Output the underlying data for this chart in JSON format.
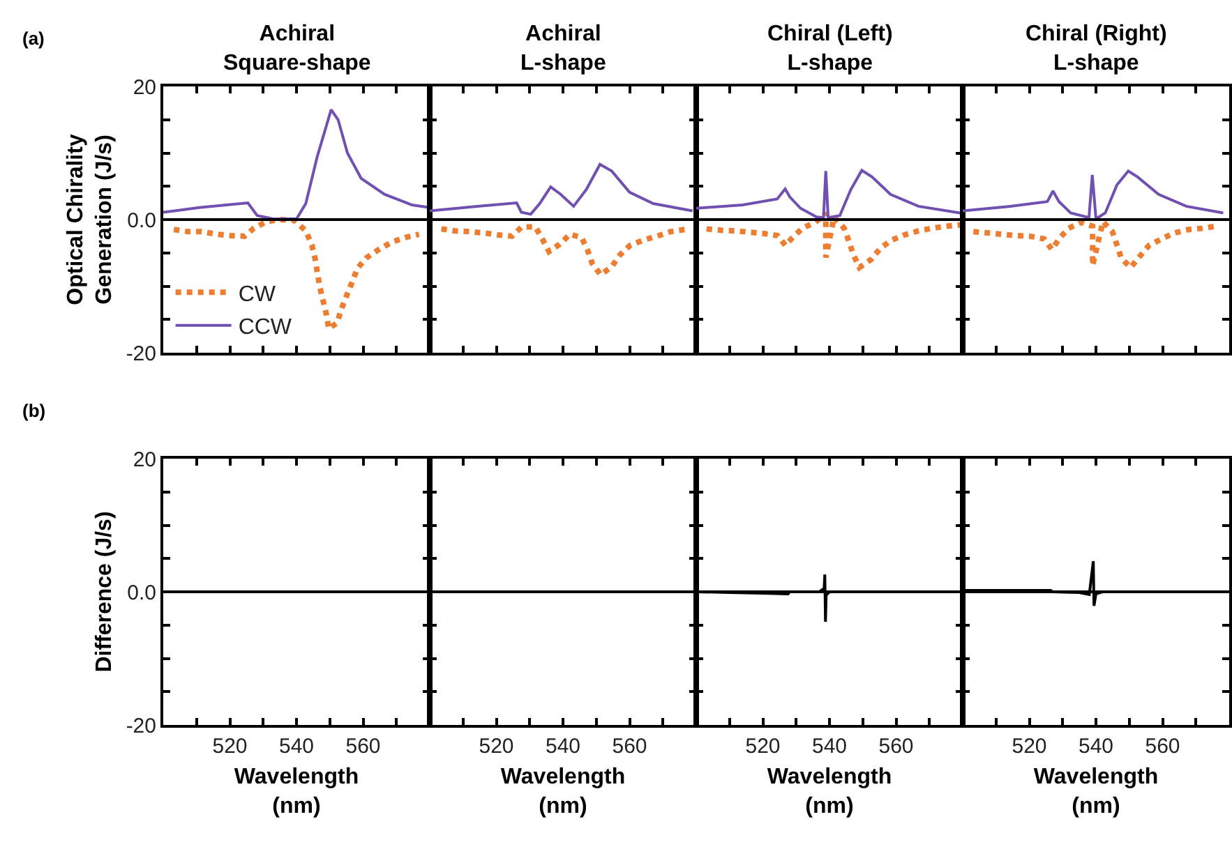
{
  "chart_data": [
    {
      "type": "line",
      "title": "Achiral\nSquare-shape",
      "ylabel": "Optical Chirality\nGeneration (J/s)",
      "annotations": [
        "(a)"
      ],
      "xlim": [
        500,
        580
      ],
      "ylim": [
        -20,
        20
      ],
      "xticks": [
        {
          "value": 510,
          "label": null
        },
        520,
        {
          "value": 530,
          "label": null
        },
        540,
        {
          "value": 550,
          "label": null
        },
        560,
        {
          "value": 570,
          "label": null
        }
      ],
      "yticks": [
        -20,
        {
          "value": -15,
          "label": null
        },
        {
          "value": -10,
          "label": null
        },
        {
          "value": -5,
          "label": null
        },
        {
          "value": 0,
          "label": "0.0"
        },
        {
          "value": 5,
          "label": null
        },
        {
          "value": 10,
          "label": null
        },
        {
          "value": 15,
          "label": null
        },
        20
      ],
      "tick_labels": "y",
      "legend": "bottom left",
      "ref_lines": [
        {
          "axis": "y",
          "value": 0,
          "color": "#000000"
        }
      ],
      "series": [
        {
          "name": "CW",
          "color": "#ed7d31",
          "line_style": "dotted",
          "x": [
            503.2,
            507.4,
            511.5,
            516,
            520.3,
            524.4,
            527.2,
            531,
            535,
            539.3,
            542.8,
            544.6,
            545.6,
            546.3,
            547,
            548,
            549,
            549.7,
            552.2,
            553.5,
            555,
            556.7,
            558.3,
            561.1,
            564.7,
            568.5,
            572.6,
            576.8
          ],
          "values": [
            -1.5,
            -1.8,
            -1.8,
            -2.2,
            -2.4,
            -2.5,
            -1.3,
            -0.3,
            0,
            -0.1,
            -1.7,
            -3.8,
            -5.9,
            -8.1,
            -10.1,
            -12.2,
            -14.3,
            -16.4,
            -15.5,
            -13.4,
            -11.5,
            -9.4,
            -7.3,
            -5.7,
            -4.5,
            -3.4,
            -2.7,
            -2.2
          ]
        },
        {
          "name": "CCW",
          "color": "#7050b0",
          "line_style": "solid",
          "x": [
            500,
            510.8,
            525.4,
            528.2,
            533,
            540,
            542.8,
            546.2,
            550.4,
            552.5,
            555.3,
            559.4,
            566.4,
            574.7,
            580
          ],
          "values": [
            1.1,
            1.8,
            2.5,
            0.6,
            0.1,
            0.1,
            2.4,
            9.4,
            16.5,
            15,
            10,
            6.2,
            3.8,
            2.2,
            1.8
          ]
        }
      ]
    },
    {
      "type": "line",
      "title": "Achiral\nL-shape",
      "xlim": [
        500,
        580
      ],
      "ylim": [
        -20,
        20
      ],
      "xticks": [
        {
          "value": 510,
          "label": null
        },
        520,
        {
          "value": 530,
          "label": null
        },
        540,
        {
          "value": 550,
          "label": null
        },
        560,
        {
          "value": 570,
          "label": null
        }
      ],
      "yticks": [
        -20,
        {
          "value": -15,
          "label": null
        },
        {
          "value": -10,
          "label": null
        },
        {
          "value": -5,
          "label": null
        },
        {
          "value": 0,
          "label": null
        },
        {
          "value": 5,
          "label": null
        },
        {
          "value": 10,
          "label": null
        },
        {
          "value": 15,
          "label": null
        },
        20
      ],
      "tick_labels": false,
      "ref_lines": [
        {
          "axis": "y",
          "value": 0,
          "color": "#000000"
        }
      ],
      "series": [
        {
          "color": "#ed7d31",
          "line_style": "dotted",
          "x": [
            503.5,
            507.6,
            511.9,
            516.2,
            520.5,
            524.7,
            527.6,
            531.7,
            533.8,
            535.8,
            539,
            542.1,
            545.6,
            547.4,
            548.8,
            551.3,
            554.6,
            557.1,
            560.1,
            564,
            568.2,
            572.4,
            576.5
          ],
          "values": [
            -1.4,
            -1.7,
            -1.8,
            -2,
            -2.3,
            -2.5,
            -1.1,
            -1.1,
            -2.9,
            -4.8,
            -3.7,
            -2.2,
            -2.7,
            -4.6,
            -6.6,
            -8.3,
            -7.1,
            -5.3,
            -3.9,
            -3.1,
            -2.5,
            -1.8,
            -1.5
          ]
        },
        {
          "color": "#7050b0",
          "line_style": "solid",
          "x": [
            500,
            514.3,
            526.1,
            527.5,
            530.3,
            533,
            536.3,
            539.3,
            543.2,
            547,
            551.1,
            554.6,
            560,
            567.1,
            578.9
          ],
          "values": [
            1.3,
            2.0,
            2.5,
            1.1,
            0.8,
            2.4,
            4.9,
            3.8,
            2.0,
            4.5,
            8.3,
            7.3,
            4.1,
            2.4,
            1.3
          ]
        }
      ]
    },
    {
      "type": "line",
      "title": "Chiral (Left)\nL-shape",
      "xlim": [
        500,
        580
      ],
      "ylim": [
        -20,
        20
      ],
      "xticks": [
        {
          "value": 510,
          "label": null
        },
        520,
        {
          "value": 530,
          "label": null
        },
        540,
        {
          "value": 550,
          "label": null
        },
        560,
        {
          "value": 570,
          "label": null
        }
      ],
      "yticks": [
        -20,
        {
          "value": -15,
          "label": null
        },
        {
          "value": -10,
          "label": null
        },
        {
          "value": -5,
          "label": null
        },
        {
          "value": 0,
          "label": null
        },
        {
          "value": 5,
          "label": null
        },
        {
          "value": 10,
          "label": null
        },
        {
          "value": 15,
          "label": null
        },
        20
      ],
      "tick_labels": false,
      "ref_lines": [
        {
          "axis": "y",
          "value": 0,
          "color": "#000000"
        }
      ],
      "series": [
        {
          "color": "#ed7d31",
          "line_style": "dotted",
          "x": [
            503.1,
            507.4,
            511.7,
            516,
            520.3,
            524.4,
            526.8,
            528.9,
            531.9,
            535.8,
            538.9,
            538.9,
            538.9,
            538.9,
            541.4,
            544.4,
            545.8,
            547.2,
            549,
            552.5,
            555.3,
            558.6,
            562.5,
            566.7,
            570.8,
            575,
            579.2
          ],
          "values": [
            -1.4,
            -1.6,
            -1.7,
            -1.9,
            -2.1,
            -2.4,
            -3.9,
            -2.7,
            -1.3,
            -0.4,
            1.0,
            -1.5,
            -3.6,
            -5.7,
            0.4,
            -1.3,
            -3.2,
            -5.3,
            -7.2,
            -6,
            -4.3,
            -3.1,
            -2.3,
            -1.7,
            -1.3,
            -1,
            -0.8
          ]
        },
        {
          "color": "#7050b0",
          "line_style": "solid",
          "x": [
            500,
            513.9,
            524.3,
            526.7,
            528.1,
            531.3,
            536.1,
            538.2,
            538.9,
            539.6,
            543.1,
            546.4,
            549.7,
            552.8,
            558.3,
            566.7,
            579.2
          ],
          "values": [
            1.7,
            2.2,
            3.1,
            4.6,
            3.4,
            1.7,
            0.4,
            0.3,
            7.3,
            0.3,
            0.6,
            4.5,
            7.4,
            6.4,
            3.8,
            2,
            1.0
          ]
        }
      ]
    },
    {
      "type": "line",
      "title": "Chiral (Right)\nL-shape",
      "xlim": [
        500,
        580
      ],
      "ylim": [
        -20,
        20
      ],
      "xticks": [
        {
          "value": 510,
          "label": null
        },
        520,
        {
          "value": 530,
          "label": null
        },
        540,
        {
          "value": 550,
          "label": null
        },
        560,
        {
          "value": 570,
          "label": null
        }
      ],
      "yticks": [
        -20,
        {
          "value": -15,
          "label": null
        },
        {
          "value": -10,
          "label": null
        },
        {
          "value": -5,
          "label": null
        },
        {
          "value": 0,
          "label": null
        },
        {
          "value": 5,
          "label": null
        },
        {
          "value": 10,
          "label": null
        },
        {
          "value": 15,
          "label": null
        },
        20
      ],
      "tick_labels": false,
      "ref_lines": [
        {
          "axis": "y",
          "value": 0,
          "color": "#000000"
        }
      ],
      "series": [
        {
          "color": "#ed7d31",
          "line_style": "dotted",
          "x": [
            503.2,
            507.5,
            511.8,
            515.9,
            520.2,
            524.4,
            526.8,
            528.9,
            531.8,
            535.6,
            539,
            539,
            539,
            539,
            542.1,
            544.9,
            546.3,
            547.6,
            550.4,
            553.2,
            555.9,
            559.7,
            563.6,
            567.8,
            571.9,
            576.1
          ],
          "values": [
            -1.8,
            -2,
            -2.2,
            -2.4,
            -2.5,
            -2.9,
            -4.5,
            -2.9,
            -1.3,
            -0.4,
            -1,
            -3.1,
            -5.1,
            -6.9,
            -0.3,
            -1.8,
            -3.8,
            -5.8,
            -7.2,
            -5.5,
            -3.9,
            -2.9,
            -2,
            -1.5,
            -1.3,
            -1
          ]
        },
        {
          "color": "#7050b0",
          "line_style": "solid",
          "x": [
            500,
            514.3,
            525.4,
            527.1,
            528.9,
            532.4,
            537.9,
            538.9,
            540,
            542.8,
            546.3,
            549.7,
            552.5,
            558.8,
            567.1,
            578.2
          ],
          "values": [
            1.3,
            2.0,
            2.7,
            4.3,
            2.7,
            1.0,
            0.3,
            6.7,
            0.1,
            1.0,
            5.2,
            7.3,
            6.4,
            3.8,
            2,
            1.0
          ]
        }
      ]
    },
    {
      "type": "line",
      "ylabel": "Difference (J/s)",
      "xlabel": "Wavelength\n(nm)",
      "annotations": [
        "(b)"
      ],
      "xlim": [
        500,
        580
      ],
      "ylim": [
        -20,
        20
      ],
      "xticks": [
        {
          "value": 510,
          "label": null
        },
        520,
        {
          "value": 530,
          "label": null
        },
        540,
        {
          "value": 550,
          "label": null
        },
        560,
        {
          "value": 570,
          "label": null
        }
      ],
      "yticks": [
        -20,
        {
          "value": -15,
          "label": null
        },
        {
          "value": -10,
          "label": null
        },
        {
          "value": -5,
          "label": null
        },
        {
          "value": 0,
          "label": "0.0"
        },
        {
          "value": 5,
          "label": null
        },
        {
          "value": 10,
          "label": null
        },
        {
          "value": 15,
          "label": null
        },
        20
      ],
      "ref_lines": [
        {
          "axis": "y",
          "value": 0,
          "color": "#000000"
        }
      ]
    },
    {
      "type": "line",
      "xlabel": "Wavelength\n(nm)",
      "xlim": [
        500,
        580
      ],
      "ylim": [
        -20,
        20
      ],
      "xticks": [
        {
          "value": 510,
          "label": null
        },
        520,
        {
          "value": 530,
          "label": null
        },
        540,
        {
          "value": 550,
          "label": null
        },
        560,
        {
          "value": 570,
          "label": null
        }
      ],
      "yticks": [
        -20,
        {
          "value": -15,
          "label": null
        },
        {
          "value": -10,
          "label": null
        },
        {
          "value": -5,
          "label": null
        },
        {
          "value": 0,
          "label": null
        },
        {
          "value": 5,
          "label": null
        },
        {
          "value": 10,
          "label": null
        },
        {
          "value": 15,
          "label": null
        },
        20
      ],
      "tick_labels": "x",
      "ref_lines": [
        {
          "axis": "y",
          "value": 0,
          "color": "#000000"
        }
      ]
    },
    {
      "type": "line",
      "xlabel": "Wavelength\n(nm)",
      "xlim": [
        500,
        580
      ],
      "ylim": [
        -20,
        20
      ],
      "xticks": [
        {
          "value": 510,
          "label": null
        },
        520,
        {
          "value": 530,
          "label": null
        },
        540,
        {
          "value": 550,
          "label": null
        },
        560,
        {
          "value": 570,
          "label": null
        }
      ],
      "yticks": [
        -20,
        {
          "value": -15,
          "label": null
        },
        {
          "value": -10,
          "label": null
        },
        {
          "value": -5,
          "label": null
        },
        {
          "value": 0,
          "label": null
        },
        {
          "value": 5,
          "label": null
        },
        {
          "value": 10,
          "label": null
        },
        {
          "value": 15,
          "label": null
        },
        20
      ],
      "tick_labels": "x",
      "ref_lines": [
        {
          "axis": "y",
          "value": 0,
          "color": "#000000"
        }
      ],
      "series": [
        {
          "color": "#000000",
          "line_style": "solid",
          "x": [
            500,
            510,
            520,
            527.6,
            528,
            537,
            538.4,
            538.6,
            538.8,
            539,
            540,
            560,
            580
          ],
          "values": [
            0,
            -0.1,
            -0.2,
            -0.3,
            0,
            0,
            0.5,
            2.6,
            -4.5,
            -0.5,
            0,
            0,
            0
          ]
        }
      ]
    },
    {
      "type": "line",
      "xlabel": "Wavelength\n(nm)",
      "xlim": [
        500,
        580
      ],
      "ylim": [
        -20,
        20
      ],
      "xticks": [
        {
          "value": 510,
          "label": null
        },
        520,
        {
          "value": 530,
          "label": null
        },
        540,
        {
          "value": 550,
          "label": null
        },
        560,
        {
          "value": 570,
          "label": null
        }
      ],
      "yticks": [
        -20,
        {
          "value": -15,
          "label": null
        },
        {
          "value": -10,
          "label": null
        },
        {
          "value": -5,
          "label": null
        },
        {
          "value": 0,
          "label": null
        },
        {
          "value": 5,
          "label": null
        },
        {
          "value": 10,
          "label": null
        },
        {
          "value": 15,
          "label": null
        },
        20
      ],
      "tick_labels": "x",
      "ref_lines": [
        {
          "axis": "y",
          "value": 0,
          "color": "#000000"
        }
      ],
      "series": [
        {
          "color": "#000000",
          "line_style": "solid",
          "x": [
            500,
            526.4,
            527,
            535,
            538,
            539.2,
            539.4,
            540,
            542,
            580
          ],
          "values": [
            0.2,
            0.2,
            0,
            -0.1,
            -0.4,
            4.6,
            -2.1,
            -0.3,
            0,
            0
          ]
        }
      ]
    }
  ]
}
